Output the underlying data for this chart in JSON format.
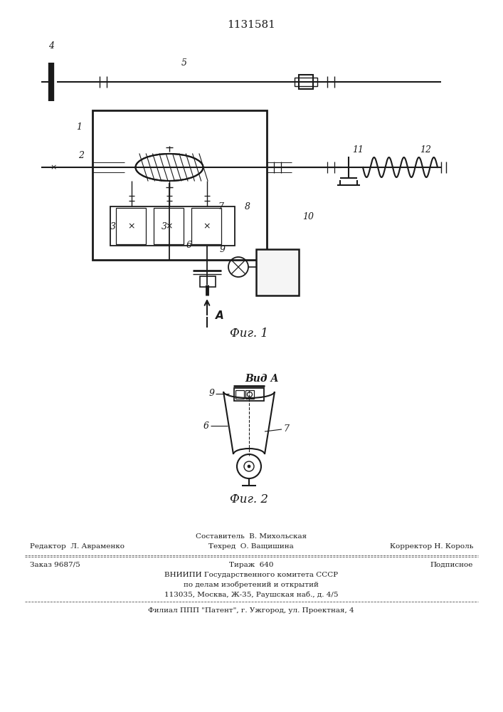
{
  "title": "1131581",
  "title_fontsize": 11,
  "bg_color": "#ffffff",
  "line_color": "#1a1a1a",
  "fig1_caption": "Фиг. 1",
  "fig2_caption": "Фиг. 2",
  "vid_a_label": "Вид А",
  "arrow_a_label": "А",
  "footer_line1_center": "Составитель  В. Михольская",
  "footer_line2_left": "Редактор  Л. Авраменко",
  "footer_line2_center": "Техред  О. Ващишина",
  "footer_line2_right": "Корректор Н. Король",
  "footer_line3_left": "Заказ 9687/5",
  "footer_line3_center": "Тираж  640",
  "footer_line3_right": "Подписное",
  "footer_line4": "ВНИИПИ Государственного комитета СССР",
  "footer_line5": "по делам изобретений и открытий",
  "footer_line6": "113035, Москва, Ж-35, Раушская наб., д. 4/5",
  "footer_last": "Филиал ППП \"Патент\", г. Ужгород, ул. Проектная, 4"
}
